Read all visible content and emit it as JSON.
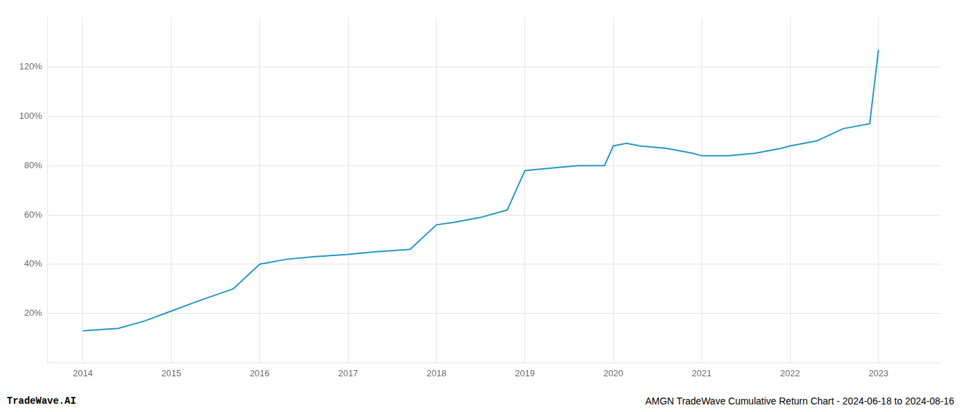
{
  "chart_data": {
    "type": "line",
    "x": [
      2014.0,
      2014.4,
      2014.7,
      2015.0,
      2015.3,
      2015.7,
      2016.0,
      2016.3,
      2016.6,
      2017.0,
      2017.3,
      2017.7,
      2018.0,
      2018.2,
      2018.5,
      2018.8,
      2019.0,
      2019.3,
      2019.6,
      2019.9,
      2020.0,
      2020.15,
      2020.3,
      2020.6,
      2020.9,
      2021.0,
      2021.3,
      2021.6,
      2021.9,
      2022.0,
      2022.3,
      2022.6,
      2022.9,
      2023.0
    ],
    "values": [
      13,
      14,
      17,
      21,
      25,
      30,
      40,
      42,
      43,
      44,
      45,
      46,
      56,
      57,
      59,
      62,
      78,
      79,
      80,
      80,
      88,
      89,
      88,
      87,
      85,
      84,
      84,
      85,
      87,
      88,
      90,
      95,
      97,
      127
    ],
    "color": "#2196c4",
    "xlim": [
      2013.6,
      2023.7
    ],
    "xticks": [
      2014,
      2015,
      2016,
      2017,
      2018,
      2019,
      2020,
      2021,
      2022,
      2023
    ],
    "ylim": [
      0,
      140
    ],
    "yticks": [
      {
        "value": 20,
        "label": "20%"
      },
      {
        "value": 40,
        "label": "40%"
      },
      {
        "value": 60,
        "label": "60%"
      },
      {
        "value": 80,
        "label": "80%"
      },
      {
        "value": 100,
        "label": "100%"
      },
      {
        "value": 120,
        "label": "120%"
      }
    ],
    "grid": true,
    "annotations": [
      "TradeWave.AI",
      "AMGN TradeWave Cumulative Return Chart - 2024-06-18 to 2024-08-16"
    ]
  }
}
